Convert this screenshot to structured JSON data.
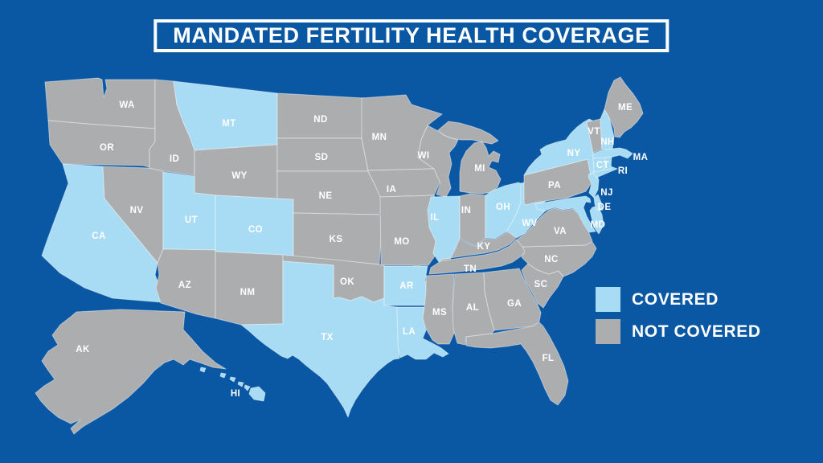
{
  "title": "MANDATED FERTILITY HEALTH COVERAGE",
  "colors": {
    "background": "#0A57A4",
    "covered": "#A8DCF5",
    "not_covered": "#ABADAF",
    "state_border": "#FFFFFF",
    "label_text": "#FFFFFF"
  },
  "legend": {
    "items": [
      {
        "label": "COVERED",
        "status": "covered"
      },
      {
        "label": "NOT COVERED",
        "status": "not_covered"
      }
    ]
  },
  "map": {
    "states": [
      {
        "id": "WA",
        "label": "WA",
        "covered": false
      },
      {
        "id": "OR",
        "label": "OR",
        "covered": false
      },
      {
        "id": "CA",
        "label": "CA",
        "covered": true
      },
      {
        "id": "NV",
        "label": "NV",
        "covered": false
      },
      {
        "id": "ID",
        "label": "ID",
        "covered": false
      },
      {
        "id": "MT",
        "label": "MT",
        "covered": true
      },
      {
        "id": "WY",
        "label": "WY",
        "covered": false
      },
      {
        "id": "UT",
        "label": "UT",
        "covered": true
      },
      {
        "id": "CO",
        "label": "CO",
        "covered": true
      },
      {
        "id": "AZ",
        "label": "AZ",
        "covered": false
      },
      {
        "id": "NM",
        "label": "NM",
        "covered": false
      },
      {
        "id": "ND",
        "label": "ND",
        "covered": false
      },
      {
        "id": "SD",
        "label": "SD",
        "covered": false
      },
      {
        "id": "NE",
        "label": "NE",
        "covered": false
      },
      {
        "id": "KS",
        "label": "KS",
        "covered": false
      },
      {
        "id": "OK",
        "label": "OK",
        "covered": false
      },
      {
        "id": "TX",
        "label": "TX",
        "covered": true
      },
      {
        "id": "MN",
        "label": "MN",
        "covered": false
      },
      {
        "id": "IA",
        "label": "IA",
        "covered": false
      },
      {
        "id": "MO",
        "label": "MO",
        "covered": false
      },
      {
        "id": "AR",
        "label": "AR",
        "covered": true
      },
      {
        "id": "LA",
        "label": "LA",
        "covered": true
      },
      {
        "id": "WI",
        "label": "WI",
        "covered": false
      },
      {
        "id": "MI",
        "label": "MI",
        "covered": false
      },
      {
        "id": "IL",
        "label": "IL",
        "covered": true
      },
      {
        "id": "IN",
        "label": "IN",
        "covered": false
      },
      {
        "id": "OH",
        "label": "OH",
        "covered": true
      },
      {
        "id": "KY",
        "label": "KY",
        "covered": false
      },
      {
        "id": "TN",
        "label": "TN",
        "covered": false
      },
      {
        "id": "MS",
        "label": "MS",
        "covered": false
      },
      {
        "id": "AL",
        "label": "AL",
        "covered": false
      },
      {
        "id": "GA",
        "label": "GA",
        "covered": false
      },
      {
        "id": "FL",
        "label": "FL",
        "covered": false
      },
      {
        "id": "SC",
        "label": "SC",
        "covered": false
      },
      {
        "id": "NC",
        "label": "NC",
        "covered": false
      },
      {
        "id": "VA",
        "label": "VA",
        "covered": false
      },
      {
        "id": "WV",
        "label": "WV",
        "covered": true
      },
      {
        "id": "PA",
        "label": "PA",
        "covered": false
      },
      {
        "id": "MD",
        "label": "MD",
        "covered": true
      },
      {
        "id": "DE",
        "label": "DE",
        "covered": true
      },
      {
        "id": "NJ",
        "label": "NJ",
        "covered": true
      },
      {
        "id": "NY",
        "label": "NY",
        "covered": true
      },
      {
        "id": "VT",
        "label": "VT",
        "covered": false
      },
      {
        "id": "NH",
        "label": "NH",
        "covered": true
      },
      {
        "id": "ME",
        "label": "ME",
        "covered": false
      },
      {
        "id": "MA",
        "label": "MA",
        "covered": true
      },
      {
        "id": "CT",
        "label": "CT",
        "covered": true
      },
      {
        "id": "RI",
        "label": "RI",
        "covered": true
      },
      {
        "id": "AK",
        "label": "AK",
        "covered": false
      },
      {
        "id": "HI",
        "label": "HI",
        "covered": true
      }
    ]
  }
}
